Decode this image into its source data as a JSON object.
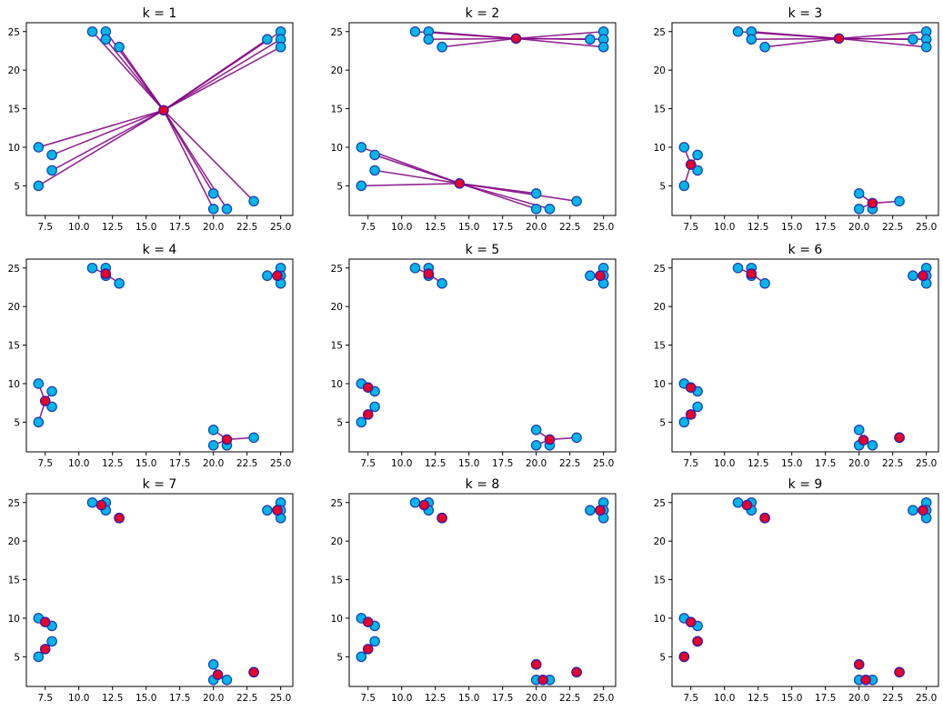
{
  "colors": {
    "point_fill": "#00b5e8",
    "point_edge": "#1f3fb0",
    "centroid_fill": "#e8002a",
    "link": "#800080"
  },
  "chart_data": {
    "type": "scatter",
    "points": [
      [
        7,
        10
      ],
      [
        8,
        9
      ],
      [
        8,
        7
      ],
      [
        7,
        5
      ],
      [
        11,
        25
      ],
      [
        12,
        25
      ],
      [
        12,
        24
      ],
      [
        13,
        23
      ],
      [
        24,
        24
      ],
      [
        25,
        25
      ],
      [
        25,
        24
      ],
      [
        25,
        23
      ],
      [
        20,
        4
      ],
      [
        20,
        2
      ],
      [
        21,
        2
      ],
      [
        23,
        3
      ]
    ],
    "x_ticks": [
      "7.5",
      "10.0",
      "12.5",
      "15.0",
      "17.5",
      "20.0",
      "22.5",
      "25.0"
    ],
    "x_tick_values": [
      7.5,
      10,
      12.5,
      15,
      17.5,
      20,
      22.5,
      25
    ],
    "y_ticks": [
      "5",
      "10",
      "15",
      "20",
      "25"
    ],
    "y_tick_values": [
      5,
      10,
      15,
      20,
      25
    ],
    "xlim": [
      6.1,
      25.9
    ],
    "ylim": [
      1.15,
      26.15
    ],
    "panels": [
      {
        "title": "k = 1",
        "centroids": [
          [
            16.3,
            14.8
          ]
        ],
        "assign": [
          0,
          0,
          0,
          0,
          0,
          0,
          0,
          0,
          0,
          0,
          0,
          0,
          0,
          0,
          0,
          0
        ]
      },
      {
        "title": "k = 2",
        "centroids": [
          [
            18.5,
            24.1
          ],
          [
            14.3,
            5.3
          ]
        ],
        "assign": [
          1,
          1,
          1,
          1,
          0,
          0,
          0,
          0,
          0,
          0,
          0,
          0,
          1,
          1,
          1,
          1
        ]
      },
      {
        "title": "k = 3",
        "centroids": [
          [
            7.5,
            7.75
          ],
          [
            18.5,
            24.1
          ],
          [
            21,
            2.75
          ]
        ],
        "assign": [
          0,
          0,
          0,
          0,
          1,
          1,
          1,
          1,
          1,
          1,
          1,
          1,
          2,
          2,
          2,
          2
        ]
      },
      {
        "title": "k = 4",
        "centroids": [
          [
            7.5,
            7.75
          ],
          [
            12,
            24.25
          ],
          [
            24.75,
            24
          ],
          [
            21,
            2.75
          ]
        ],
        "assign": [
          0,
          0,
          0,
          0,
          1,
          1,
          1,
          1,
          2,
          2,
          2,
          2,
          3,
          3,
          3,
          3
        ]
      },
      {
        "title": "k = 5",
        "centroids": [
          [
            7.5,
            9.5
          ],
          [
            7.5,
            6
          ],
          [
            12,
            24.25
          ],
          [
            24.75,
            24
          ],
          [
            21,
            2.75
          ]
        ],
        "assign": [
          0,
          0,
          1,
          1,
          2,
          2,
          2,
          2,
          3,
          3,
          3,
          3,
          4,
          4,
          4,
          4
        ]
      },
      {
        "title": "k = 6",
        "centroids": [
          [
            7.5,
            9.5
          ],
          [
            7.5,
            6
          ],
          [
            12,
            24.25
          ],
          [
            24.75,
            24
          ],
          [
            20.33,
            2.67
          ],
          [
            23,
            3
          ]
        ],
        "assign": [
          0,
          0,
          1,
          1,
          2,
          2,
          2,
          2,
          3,
          3,
          3,
          3,
          4,
          4,
          4,
          5
        ]
      },
      {
        "title": "k = 7",
        "centroids": [
          [
            7.5,
            9.5
          ],
          [
            7.5,
            6
          ],
          [
            11.67,
            24.67
          ],
          [
            13,
            23
          ],
          [
            24.75,
            24
          ],
          [
            20.33,
            2.67
          ],
          [
            23,
            3
          ]
        ],
        "assign": [
          0,
          0,
          1,
          1,
          2,
          2,
          2,
          3,
          4,
          4,
          4,
          4,
          5,
          5,
          5,
          6
        ]
      },
      {
        "title": "k = 8",
        "centroids": [
          [
            7.5,
            9.5
          ],
          [
            7.5,
            6
          ],
          [
            11.67,
            24.67
          ],
          [
            13,
            23
          ],
          [
            24.75,
            24
          ],
          [
            20,
            4
          ],
          [
            20.5,
            2
          ],
          [
            23,
            3
          ]
        ],
        "assign": [
          0,
          0,
          1,
          1,
          2,
          2,
          2,
          3,
          4,
          4,
          4,
          4,
          5,
          6,
          6,
          7
        ]
      },
      {
        "title": "k = 9",
        "centroids": [
          [
            7.5,
            9.5
          ],
          [
            8,
            7
          ],
          [
            7,
            5
          ],
          [
            11.67,
            24.67
          ],
          [
            13,
            23
          ],
          [
            24.75,
            24
          ],
          [
            20,
            4
          ],
          [
            20.5,
            2
          ],
          [
            23,
            3
          ]
        ],
        "assign": [
          0,
          0,
          1,
          2,
          3,
          3,
          3,
          4,
          5,
          5,
          5,
          5,
          6,
          7,
          7,
          8
        ]
      }
    ]
  }
}
